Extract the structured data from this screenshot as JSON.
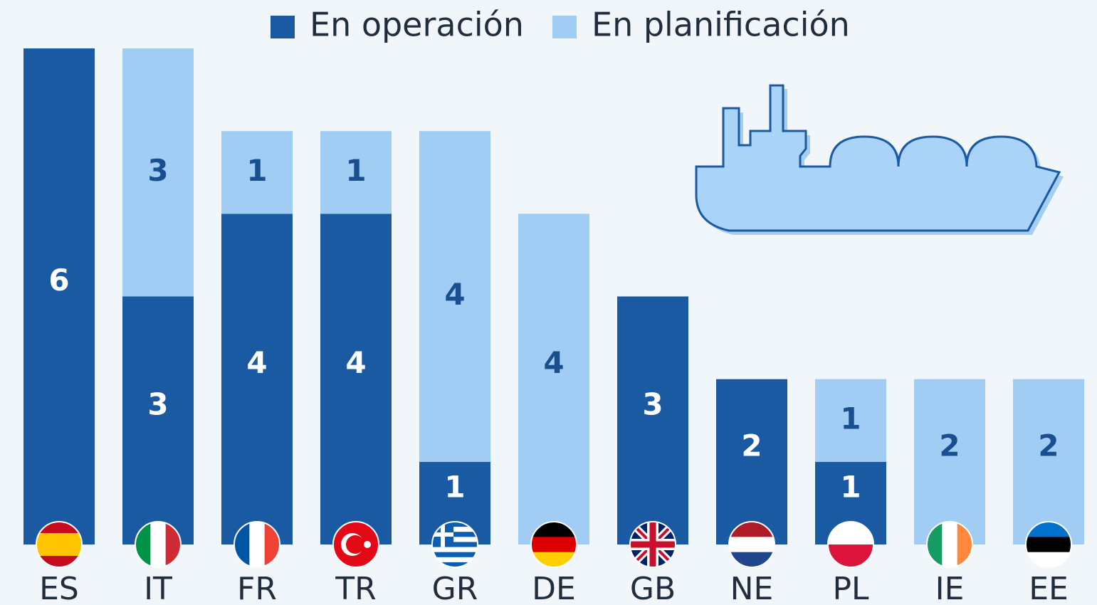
{
  "chart_data": {
    "type": "stacked-bar",
    "categories": [
      "ES",
      "IT",
      "FR",
      "TR",
      "GR",
      "DE",
      "GB",
      "NE",
      "PL",
      "IE",
      "EE"
    ],
    "series": [
      {
        "name": "En operación",
        "color": "#1a5aa3",
        "values": [
          6,
          3,
          4,
          4,
          1,
          null,
          3,
          2,
          1,
          null,
          null
        ]
      },
      {
        "name": "En planificación",
        "color": "#a1cdf4",
        "values": [
          null,
          3,
          1,
          1,
          4,
          4,
          null,
          null,
          1,
          2,
          2
        ]
      }
    ]
  }
}
